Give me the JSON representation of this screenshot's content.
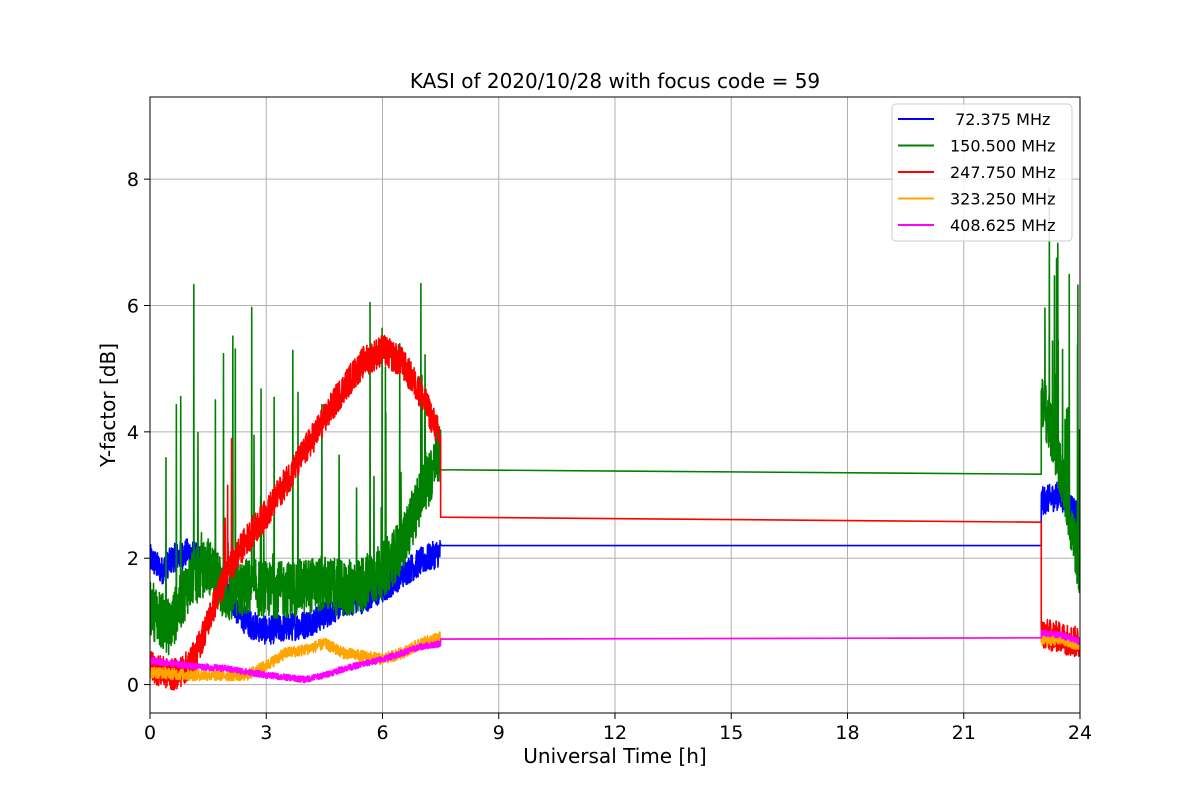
{
  "chart_data": {
    "type": "line",
    "title": "KASI of 2020/10/28 with focus code = 59",
    "xlabel": "Universal Time [h]",
    "ylabel": "Y-factor [dB]",
    "xlim": [
      0,
      24
    ],
    "ylim": [
      -0.45,
      9.3
    ],
    "xticks": [
      0,
      3,
      6,
      9,
      12,
      15,
      18,
      21,
      24
    ],
    "yticks": [
      0,
      2,
      4,
      6,
      8
    ],
    "grid": true,
    "legend_position": "top-right",
    "series": [
      {
        "name": " 72.375 MHz",
        "color": "#0000ff",
        "noise": 0.45,
        "x": [
          0,
          0.3,
          0.6,
          1.0,
          1.5,
          2.0,
          2.3,
          2.6,
          3.0,
          3.5,
          4.0,
          4.5,
          5.0,
          5.5,
          6.0,
          6.5,
          7.0,
          7.5,
          7.5,
          23.0,
          23.0,
          23.5,
          24
        ],
        "y": [
          2.0,
          1.8,
          2.0,
          2.1,
          1.9,
          1.5,
          1.1,
          0.95,
          0.85,
          0.9,
          0.95,
          1.1,
          1.3,
          1.35,
          1.5,
          1.75,
          1.95,
          2.1,
          2.2,
          2.2,
          2.9,
          3.0,
          2.6
        ]
      },
      {
        "name": "150.500 MHz",
        "color": "#008000",
        "noise": 0.9,
        "x": [
          0,
          0.5,
          1.0,
          1.5,
          2.0,
          2.5,
          3.0,
          3.5,
          4.0,
          4.5,
          5.0,
          5.5,
          6.0,
          6.5,
          7.0,
          7.5,
          7.5,
          23.0,
          23.0,
          23.5,
          24
        ],
        "y": [
          1.2,
          0.9,
          1.6,
          1.9,
          1.4,
          1.55,
          1.5,
          1.5,
          1.55,
          1.6,
          1.5,
          1.6,
          1.8,
          2.2,
          3.0,
          3.7,
          3.4,
          3.33,
          4.6,
          3.4,
          1.8
        ]
      },
      {
        "name": "247.750 MHz",
        "color": "#ff0000",
        "noise": 0.5,
        "x": [
          0,
          0.3,
          0.6,
          0.9,
          1.2,
          1.5,
          1.8,
          2.1,
          2.5,
          3.0,
          3.5,
          4.0,
          4.5,
          5.0,
          5.5,
          6.0,
          6.5,
          7.0,
          7.5,
          7.5,
          23.0,
          23.0,
          23.5,
          24
        ],
        "y": [
          0.3,
          0.2,
          0.15,
          0.25,
          0.5,
          1.0,
          1.5,
          1.9,
          2.3,
          2.7,
          3.2,
          3.7,
          4.2,
          4.7,
          5.1,
          5.3,
          5.1,
          4.6,
          3.9,
          2.65,
          2.57,
          0.8,
          0.75,
          0.65
        ]
      },
      {
        "name": "323.250 MHz",
        "color": "#ffa500",
        "noise": 0.18,
        "x": [
          0,
          1.0,
          2.0,
          2.5,
          3.0,
          3.5,
          4.0,
          4.5,
          5.0,
          5.5,
          6.0,
          6.5,
          7.0,
          7.5,
          7.5,
          23.0,
          23.0,
          23.5,
          24
        ],
        "y": [
          0.2,
          0.15,
          0.15,
          0.15,
          0.3,
          0.5,
          0.55,
          0.65,
          0.5,
          0.45,
          0.4,
          0.5,
          0.65,
          0.75,
          0.72,
          0.74,
          0.7,
          0.72,
          0.62
        ]
      },
      {
        "name": "408.625 MHz",
        "color": "#ff00ff",
        "noise": 0.1,
        "x": [
          0,
          1.0,
          2.0,
          3.0,
          4.0,
          4.5,
          5.0,
          6.0,
          6.5,
          7.0,
          7.5,
          7.5,
          23.0,
          23.0,
          23.5,
          24
        ],
        "y": [
          0.38,
          0.3,
          0.25,
          0.15,
          0.08,
          0.15,
          0.25,
          0.4,
          0.5,
          0.6,
          0.65,
          0.72,
          0.74,
          0.82,
          0.78,
          0.68
        ]
      }
    ]
  }
}
